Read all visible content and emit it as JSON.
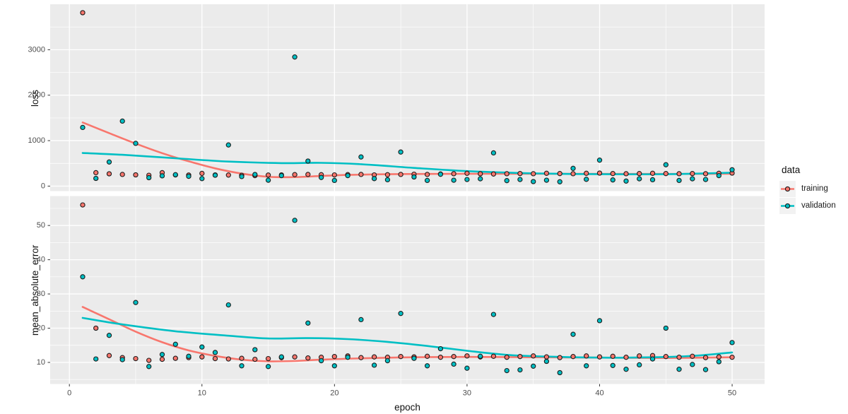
{
  "figure": {
    "panel_background": "#EBEBEB",
    "grid_color": "#FFFFFF",
    "tick_mark_color": "#333333",
    "tick_label_color": "#4D4D4D",
    "axis_title_color": "#111111",
    "point_stroke": "#1B1B1B"
  },
  "legend": {
    "title": "data",
    "key_background": "#F2F2F2",
    "items": [
      {
        "label": "training",
        "color": "#F8766D"
      },
      {
        "label": "validation",
        "color": "#00BFC4"
      }
    ]
  },
  "x_axis": {
    "label": "epoch",
    "ticks": [
      0,
      10,
      20,
      30,
      40,
      50
    ],
    "ticks_minor": [
      5,
      15,
      25,
      35,
      45
    ],
    "xlim": [
      -1.45,
      52.45
    ]
  },
  "chart_data": [
    {
      "type": "scatter",
      "title": "",
      "xlabel": "epoch",
      "ylabel": "loss",
      "ylim": [
        -110,
        4000
      ],
      "yticks": [
        0,
        1000,
        2000,
        3000
      ],
      "yticks_minor": [
        500,
        1500,
        2500,
        3500
      ],
      "x": [
        1,
        2,
        3,
        4,
        5,
        6,
        7,
        8,
        9,
        10,
        11,
        12,
        13,
        14,
        15,
        16,
        17,
        18,
        19,
        20,
        21,
        22,
        23,
        24,
        25,
        26,
        27,
        28,
        29,
        30,
        31,
        32,
        33,
        34,
        35,
        36,
        37,
        38,
        39,
        40,
        41,
        42,
        43,
        44,
        45,
        46,
        47,
        48,
        49,
        50
      ],
      "series": [
        {
          "name": "training",
          "color": "#F8766D",
          "values": [
            3813,
            295,
            270,
            256,
            248,
            238,
            295,
            246,
            242,
            280,
            246,
            242,
            236,
            230,
            242,
            246,
            252,
            256,
            250,
            246,
            252,
            256,
            246,
            250,
            256,
            262,
            256,
            266,
            272,
            282,
            272,
            266,
            272,
            276,
            272,
            282,
            276,
            272,
            282,
            286,
            276,
            272,
            276,
            282,
            276,
            272,
            276,
            272,
            282,
            286
          ],
          "smooth_x": [
            1,
            3,
            5,
            7,
            9,
            11,
            13,
            15,
            17,
            19,
            21,
            24,
            27,
            30,
            34,
            38,
            42,
            46,
            50
          ],
          "smooth_y": [
            1400,
            1165,
            935,
            725,
            545,
            390,
            275,
            205,
            198,
            222,
            246,
            262,
            268,
            270,
            271,
            270,
            268,
            268,
            273
          ]
        },
        {
          "name": "validation",
          "color": "#00BFC4",
          "values": [
            1290,
            170,
            530,
            1430,
            940,
            185,
            225,
            250,
            215,
            165,
            240,
            905,
            210,
            255,
            130,
            230,
            2840,
            550,
            190,
            125,
            230,
            640,
            165,
            140,
            750,
            200,
            125,
            260,
            130,
            145,
            160,
            730,
            120,
            145,
            100,
            130,
            95,
            390,
            150,
            570,
            135,
            110,
            160,
            140,
            470,
            125,
            160,
            145,
            230,
            360
          ],
          "smooth_x": [
            1,
            4,
            8,
            12,
            16,
            19,
            22,
            26,
            30,
            34,
            38,
            42,
            46,
            50
          ],
          "smooth_y": [
            728,
            688,
            612,
            540,
            505,
            512,
            482,
            400,
            330,
            288,
            266,
            260,
            266,
            296
          ]
        }
      ]
    },
    {
      "type": "scatter",
      "title": "",
      "xlabel": "epoch",
      "ylabel": "mean_absolute_error",
      "ylim": [
        3.7,
        58.6
      ],
      "yticks": [
        10,
        20,
        30,
        40,
        50
      ],
      "yticks_minor": [
        5,
        15,
        25,
        35,
        45,
        55
      ],
      "x": [
        1,
        2,
        3,
        4,
        5,
        6,
        7,
        8,
        9,
        10,
        11,
        12,
        13,
        14,
        15,
        16,
        17,
        18,
        19,
        20,
        21,
        22,
        23,
        24,
        25,
        26,
        27,
        28,
        29,
        30,
        31,
        32,
        33,
        34,
        35,
        36,
        37,
        38,
        39,
        40,
        41,
        42,
        43,
        44,
        45,
        46,
        47,
        48,
        49,
        50
      ],
      "series": [
        {
          "name": "training",
          "color": "#F8766D",
          "values": [
            56.0,
            20.0,
            12.0,
            11.4,
            11.1,
            10.6,
            10.9,
            11.2,
            11.4,
            11.6,
            11.1,
            11.0,
            11.2,
            10.9,
            11.1,
            11.4,
            11.6,
            11.3,
            11.5,
            11.7,
            11.9,
            11.4,
            11.6,
            11.5,
            11.7,
            11.6,
            11.8,
            11.5,
            11.7,
            11.9,
            11.6,
            11.8,
            11.5,
            11.7,
            11.9,
            11.6,
            11.4,
            11.7,
            11.9,
            11.6,
            11.8,
            11.5,
            11.9,
            12.0,
            11.7,
            11.5,
            11.8,
            11.4,
            11.6,
            11.5
          ],
          "smooth_x": [
            1,
            3,
            5,
            7,
            9,
            11,
            13,
            15,
            17,
            19,
            22,
            26,
            30,
            35,
            40,
            45,
            50
          ],
          "smooth_y": [
            26.2,
            22.6,
            19.0,
            15.9,
            13.5,
            11.9,
            10.8,
            10.3,
            10.4,
            10.8,
            11.2,
            11.5,
            11.6,
            11.5,
            11.4,
            11.3,
            11.5
          ]
        },
        {
          "name": "validation",
          "color": "#00BFC4",
          "values": [
            35.0,
            11.0,
            17.9,
            10.8,
            27.5,
            8.8,
            12.3,
            15.3,
            11.8,
            14.5,
            12.9,
            26.8,
            9.0,
            13.7,
            8.8,
            11.6,
            51.5,
            21.5,
            10.5,
            9.0,
            11.5,
            22.5,
            9.2,
            10.5,
            24.3,
            11.2,
            9.0,
            14.0,
            9.5,
            8.3,
            11.8,
            24.0,
            7.6,
            7.8,
            8.9,
            10.3,
            7.0,
            18.2,
            9.0,
            22.2,
            9.1,
            8.0,
            9.3,
            11.0,
            20.0,
            8.0,
            9.4,
            7.9,
            10.2,
            15.8
          ],
          "smooth_x": [
            1,
            4,
            8,
            12,
            15,
            18,
            21,
            24,
            27,
            30,
            33,
            36,
            40,
            44,
            47,
            50
          ],
          "smooth_y": [
            23.0,
            21.1,
            19.1,
            17.8,
            17.0,
            17.1,
            16.8,
            16.0,
            14.8,
            13.4,
            12.2,
            11.7,
            11.4,
            11.5,
            11.9,
            12.9
          ]
        }
      ]
    }
  ]
}
